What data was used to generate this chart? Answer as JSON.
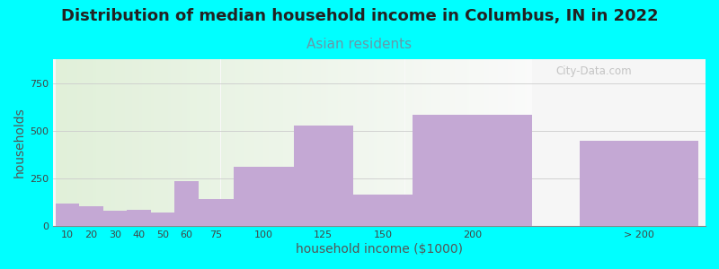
{
  "title": "Distribution of median household income in Columbus, IN in 2022",
  "subtitle": "Asian residents",
  "xlabel": "household income ($1000)",
  "ylabel": "households",
  "background_color": "#00FFFF",
  "bar_color": "#C4A8D4",
  "categories": [
    "10",
    "20",
    "30",
    "40",
    "50",
    "60",
    "75",
    "100",
    "125",
    "150",
    "200",
    "> 200"
  ],
  "values": [
    120,
    105,
    80,
    85,
    70,
    235,
    140,
    310,
    530,
    165,
    585,
    450
  ],
  "ylim": [
    0,
    880
  ],
  "yticks": [
    0,
    250,
    500,
    750
  ],
  "title_fontsize": 13,
  "subtitle_fontsize": 11,
  "label_fontsize": 10,
  "tick_fontsize": 8,
  "watermark": "City-Data.com",
  "title_color": "#222222",
  "subtitle_color": "#6699AA",
  "ylabel_color": "#555555",
  "xlabel_color": "#555555"
}
